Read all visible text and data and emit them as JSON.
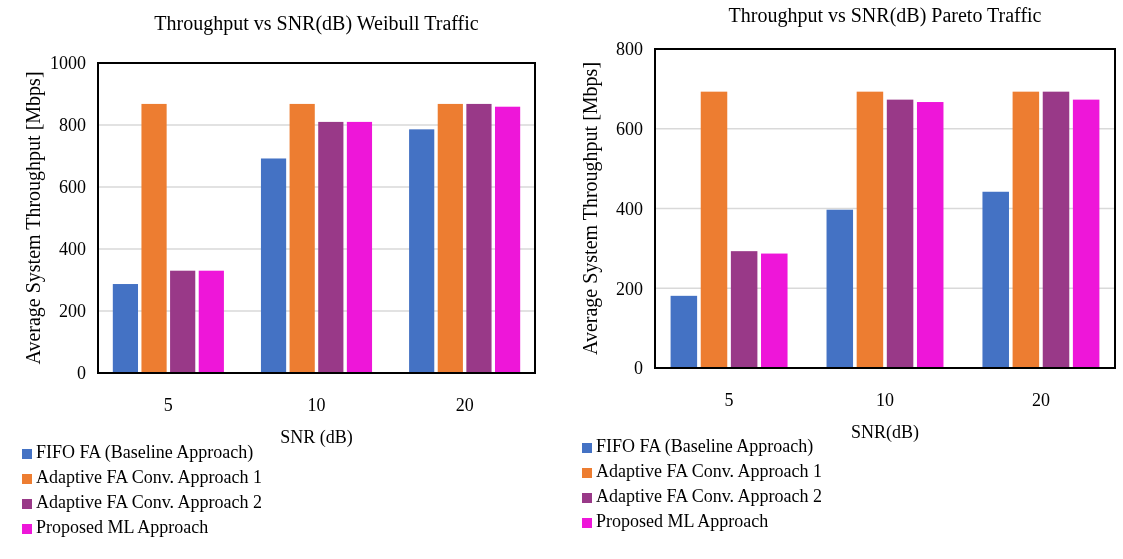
{
  "chart_data": [
    {
      "type": "bar",
      "title": "Throughput vs SNR(dB) Weibull Traffic",
      "xlabel": "SNR (dB)",
      "ylabel": "Average System Throughput [Mbps]",
      "categories": [
        "5",
        "10",
        "20"
      ],
      "ylim": [
        0,
        1000
      ],
      "yticks": [
        0,
        200,
        400,
        600,
        800,
        1000
      ],
      "grid": "y",
      "legend": "bottom",
      "series": [
        {
          "name": "FIFO FA  (Baseline Approach)",
          "color": "#4472c4",
          "values": [
            287,
            692,
            786
          ]
        },
        {
          "name": "Adaptive FA Conv. Approach 1",
          "color": "#ed7d31",
          "values": [
            868,
            868,
            868
          ]
        },
        {
          "name": "Adaptive FA Conv. Approach  2",
          "color": "#993988",
          "values": [
            330,
            810,
            868
          ]
        },
        {
          "name": "Proposed ML Approach",
          "color": "#ee16d9",
          "values": [
            330,
            810,
            859
          ]
        }
      ]
    },
    {
      "type": "bar",
      "title": "Throughput vs SNR(dB) Pareto Traffic",
      "xlabel": "SNR(dB)",
      "ylabel": "Average System Throughput [Mbps]",
      "categories": [
        "5",
        "10",
        "20"
      ],
      "ylim": [
        0,
        800
      ],
      "yticks": [
        0,
        200,
        400,
        600,
        800
      ],
      "grid": "y",
      "legend": "bottom",
      "series": [
        {
          "name": "FIFO FA  (Baseline Approach)",
          "color": "#4472c4",
          "values": [
            181,
            397,
            442
          ]
        },
        {
          "name": "Adaptive FA Conv. Approach 1",
          "color": "#ed7d31",
          "values": [
            693,
            693,
            693
          ]
        },
        {
          "name": "Adaptive FA Conv. Approach  2",
          "color": "#993988",
          "values": [
            293,
            673,
            693
          ]
        },
        {
          "name": "Proposed ML Approach",
          "color": "#ee16d9",
          "values": [
            287,
            667,
            673
          ]
        }
      ]
    }
  ]
}
